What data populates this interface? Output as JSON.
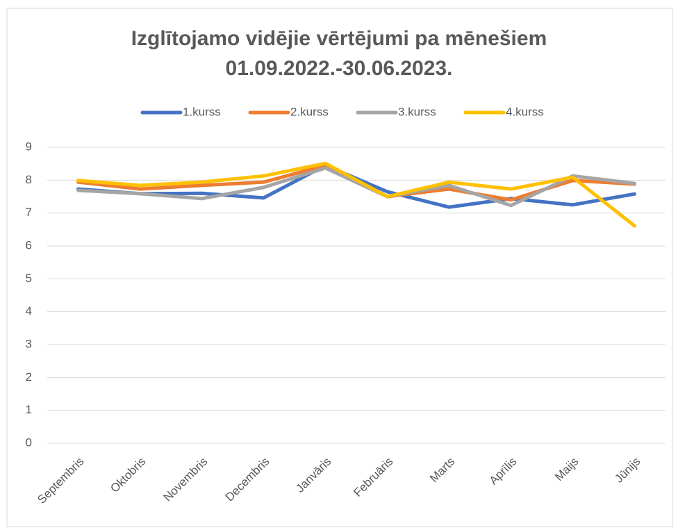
{
  "chart_data": {
    "type": "line",
    "title": [
      "Izglītojamo vidējie vērtējumi pa mēnešiem",
      "01.09.2022.-30.06.2023."
    ],
    "categories": [
      "Septembris",
      "Oktobris",
      "Novembris",
      "Decembris",
      "Janvāris",
      "Februāris",
      "Marts",
      "Aprīlis",
      "Maijs",
      "Jūnijs"
    ],
    "series": [
      {
        "name": "1.kurss",
        "color": "#4472c4",
        "values": [
          7.73,
          7.59,
          7.6,
          7.46,
          8.45,
          7.65,
          7.18,
          7.44,
          7.25,
          7.58
        ]
      },
      {
        "name": "2.kurss",
        "color": "#ed7d31",
        "values": [
          7.94,
          7.73,
          7.84,
          7.94,
          8.45,
          7.5,
          7.73,
          7.4,
          7.99,
          7.88
        ]
      },
      {
        "name": "3.kurss",
        "color": "#a5a5a5",
        "values": [
          7.69,
          7.59,
          7.44,
          7.78,
          8.37,
          7.5,
          7.84,
          7.23,
          8.13,
          7.9
        ]
      },
      {
        "name": "4.kurss",
        "color": "#ffc000",
        "values": [
          7.99,
          7.84,
          7.94,
          8.13,
          8.51,
          7.5,
          7.94,
          7.73,
          8.09,
          6.61
        ]
      }
    ],
    "ylim": [
      0,
      9
    ],
    "yticks": [
      0,
      1,
      2,
      3,
      4,
      5,
      6,
      7,
      8,
      9
    ],
    "grid": true,
    "legend": "top"
  }
}
